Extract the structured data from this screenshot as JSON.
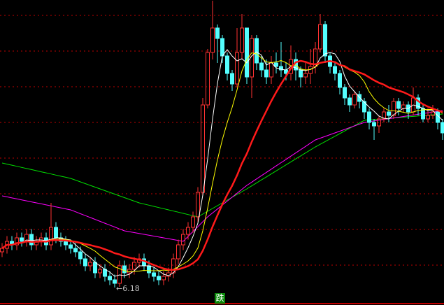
{
  "chart_data": {
    "type": "candlestick",
    "title": "",
    "xlabel": "",
    "ylabel": "",
    "ylim": [
      5.68,
      14.4
    ],
    "grid": true,
    "gridlines": [
      13.96,
      12.94,
      11.92,
      10.9,
      9.88,
      8.86,
      7.84,
      6.82
    ],
    "colors": {
      "up": "#ff3232",
      "down": "#54ffff",
      "grid": "#c00000",
      "background": "#000000",
      "ma5": "#ffffff",
      "ma10": "#ffff00",
      "ma20": "#ff1a1a",
      "ma_long1": "#ff00ff",
      "ma_long2": "#00e000"
    },
    "open": [
      7.2,
      7.3,
      7.5,
      7.4,
      7.6,
      7.5,
      7.7,
      7.4,
      7.5,
      7.6,
      7.4,
      7.9,
      7.6,
      7.5,
      7.4,
      7.3,
      7.2,
      7.0,
      6.8,
      6.9,
      6.6,
      6.7,
      6.5,
      6.4,
      6.3,
      6.8,
      6.6,
      6.7,
      6.9,
      7.0,
      6.8,
      6.6,
      6.5,
      6.4,
      6.5,
      6.6,
      7.0,
      7.4,
      7.7,
      7.9,
      8.2,
      8.9,
      11.4,
      12.9,
      13.6,
      13.3,
      12.8,
      12.3,
      12.0,
      12.9,
      13.6,
      12.2,
      13.3,
      12.6,
      12.4,
      12.2,
      12.6,
      12.5,
      12.4,
      12.3,
      12.7,
      12.4,
      12.2,
      12.3,
      12.5,
      13.0,
      13.7,
      12.8,
      12.5,
      12.3,
      11.9,
      11.6,
      11.4,
      11.7,
      11.5,
      11.2,
      10.9,
      10.8,
      11.0,
      11.2,
      11.1,
      11.5,
      11.3,
      11.4,
      11.2,
      11.6,
      11.3,
      11.0,
      11.1,
      11.2,
      10.9
    ],
    "close": [
      7.3,
      7.5,
      7.4,
      7.6,
      7.5,
      7.7,
      7.4,
      7.5,
      7.6,
      7.4,
      7.9,
      7.6,
      7.5,
      7.4,
      7.3,
      7.2,
      7.0,
      6.8,
      6.9,
      6.6,
      6.7,
      6.5,
      6.4,
      6.3,
      6.8,
      6.6,
      6.7,
      6.9,
      7.0,
      6.8,
      6.6,
      6.5,
      6.4,
      6.5,
      6.6,
      7.0,
      7.4,
      7.7,
      7.9,
      8.2,
      8.9,
      11.4,
      12.9,
      13.6,
      13.3,
      12.8,
      12.3,
      12.0,
      12.9,
      13.6,
      12.2,
      13.3,
      12.6,
      12.4,
      12.2,
      12.6,
      12.5,
      12.4,
      12.3,
      12.7,
      12.4,
      12.2,
      12.3,
      12.5,
      13.0,
      13.7,
      12.8,
      12.5,
      12.3,
      11.9,
      11.6,
      11.4,
      11.7,
      11.5,
      11.2,
      10.9,
      10.8,
      11.0,
      11.2,
      11.1,
      11.5,
      11.3,
      11.4,
      11.2,
      11.6,
      11.3,
      11.0,
      11.1,
      11.2,
      10.9,
      10.6
    ],
    "high": [
      7.45,
      7.65,
      7.65,
      7.75,
      7.75,
      7.85,
      7.85,
      7.65,
      7.75,
      7.75,
      8.6,
      8.05,
      7.75,
      7.65,
      7.55,
      7.45,
      7.35,
      7.15,
      7.05,
      7.05,
      6.85,
      6.85,
      6.65,
      6.55,
      6.95,
      6.95,
      6.85,
      7.05,
      7.15,
      7.15,
      6.95,
      6.75,
      6.65,
      6.65,
      6.75,
      7.15,
      7.55,
      7.85,
      8.05,
      8.35,
      9.05,
      11.6,
      13.0,
      14.38,
      13.7,
      13.4,
      12.9,
      12.4,
      13.6,
      14.0,
      13.6,
      13.4,
      13.4,
      12.8,
      12.7,
      12.8,
      12.9,
      13.2,
      12.6,
      13.1,
      12.9,
      12.5,
      12.6,
      13.0,
      13.2,
      14.0,
      13.8,
      12.9,
      12.6,
      12.4,
      12.0,
      11.7,
      11.8,
      11.8,
      11.6,
      11.3,
      11.0,
      11.1,
      11.3,
      11.4,
      11.6,
      11.6,
      11.5,
      11.5,
      11.9,
      11.7,
      11.4,
      11.3,
      11.4,
      11.3,
      11.0
    ],
    "low": [
      7.05,
      7.15,
      7.25,
      7.25,
      7.35,
      7.35,
      7.25,
      7.25,
      7.35,
      7.25,
      7.25,
      7.45,
      7.35,
      7.25,
      7.15,
      7.05,
      6.85,
      6.65,
      6.65,
      6.45,
      6.45,
      6.35,
      6.25,
      6.18,
      6.2,
      6.45,
      6.45,
      6.55,
      6.75,
      6.65,
      6.45,
      6.35,
      6.25,
      6.25,
      6.35,
      6.45,
      6.85,
      7.25,
      7.55,
      7.75,
      8.05,
      8.8,
      11.3,
      12.7,
      12.6,
      12.6,
      12.1,
      11.8,
      11.9,
      12.7,
      12.0,
      11.6,
      12.4,
      12.2,
      12.0,
      12.0,
      12.3,
      12.2,
      12.1,
      12.1,
      12.1,
      11.9,
      12.0,
      12.0,
      12.3,
      12.9,
      12.6,
      12.3,
      12.1,
      11.7,
      11.4,
      11.2,
      11.3,
      11.3,
      11.0,
      10.7,
      10.4,
      10.6,
      10.9,
      10.9,
      11.0,
      11.1,
      11.2,
      11.0,
      11.1,
      11.1,
      10.9,
      10.9,
      11.0,
      10.7,
      10.4
    ],
    "ma_periods": [
      5,
      10,
      20
    ],
    "ma_long1": [
      [
        0,
        8.8
      ],
      [
        14,
        8.4
      ],
      [
        25,
        7.8
      ],
      [
        37,
        7.5
      ],
      [
        42,
        8.2
      ],
      [
        50,
        9.1
      ],
      [
        64,
        10.4
      ],
      [
        74,
        10.9
      ],
      [
        90,
        11.24
      ]
    ],
    "ma_long2": [
      [
        0,
        9.74
      ],
      [
        14,
        9.3
      ],
      [
        28,
        8.6
      ],
      [
        40,
        8.2
      ],
      [
        50,
        9.0
      ],
      [
        64,
        10.2
      ],
      [
        74,
        10.96
      ],
      [
        90,
        11.14
      ]
    ],
    "annotations": {
      "low_label": "←6.18",
      "low_index": 23,
      "signal_badge": "跌"
    }
  }
}
